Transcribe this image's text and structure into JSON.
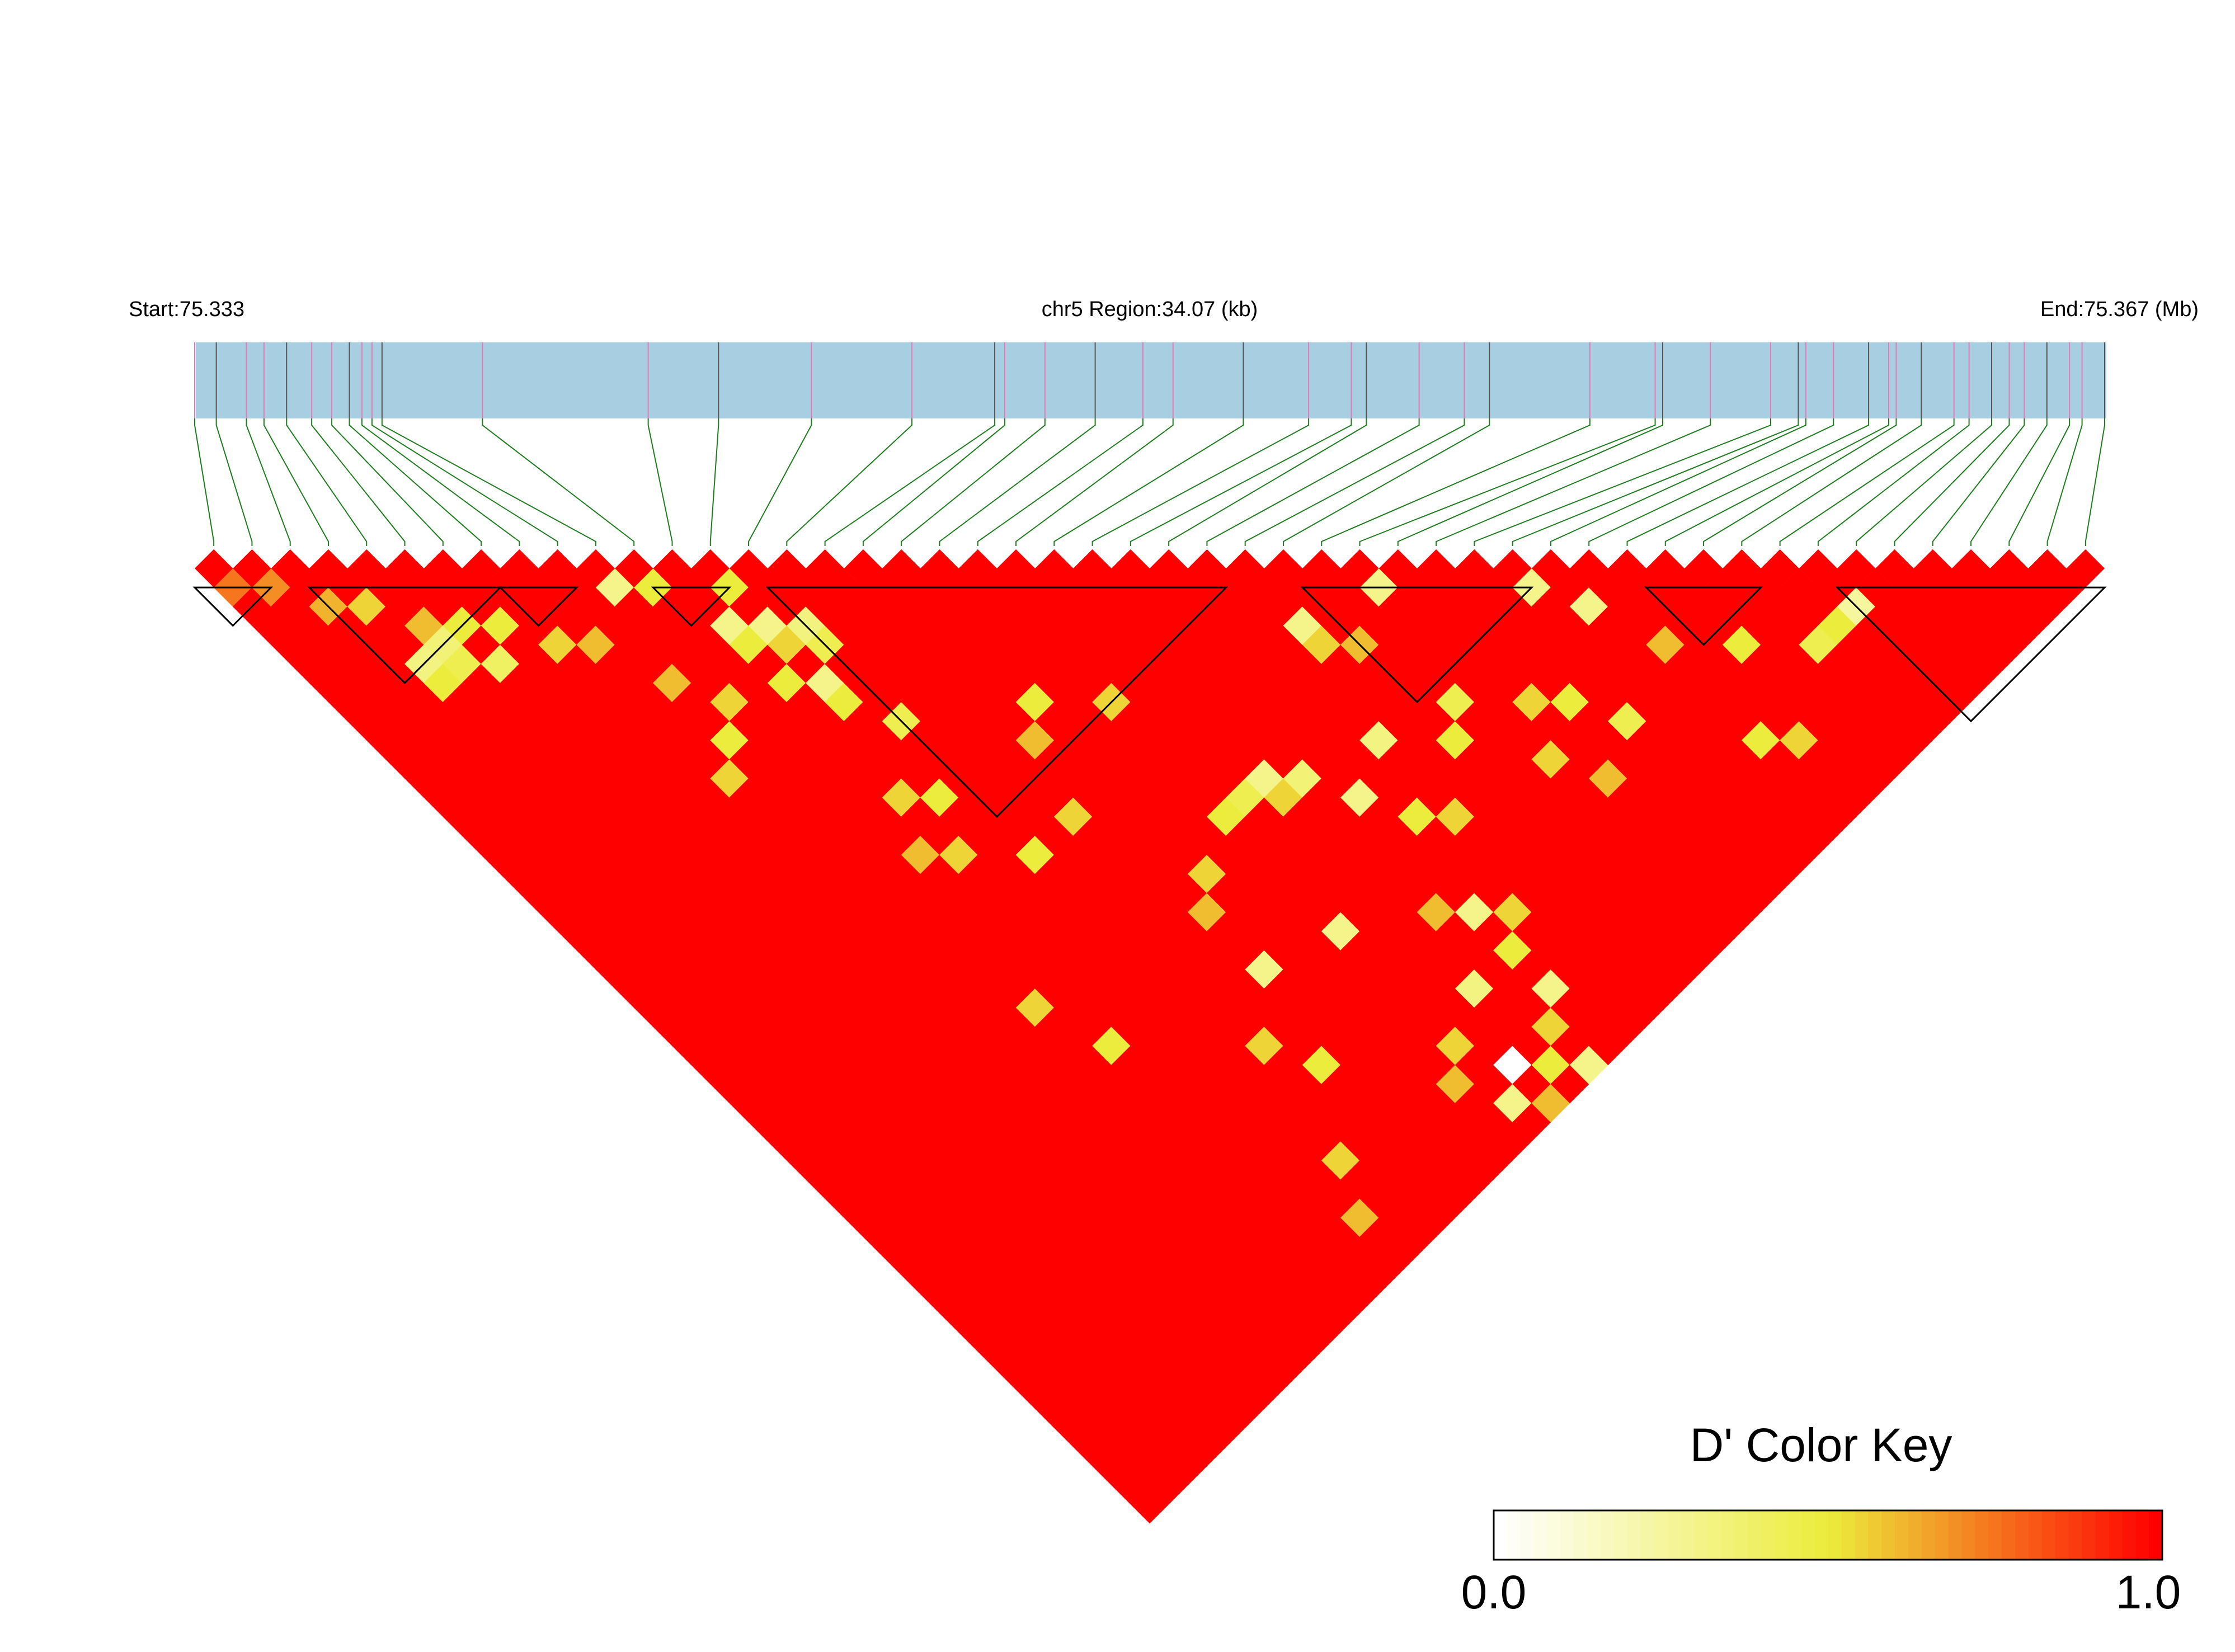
{
  "header": {
    "start_label": "Start:75.333",
    "region_label": "chr5 Region:34.07 (kb)",
    "end_label": "End:75.367 (Mb)"
  },
  "color_key": {
    "title": "D' Color Key",
    "min_label": "0.0",
    "max_label": "1.0"
  },
  "colors": {
    "bar": "#a8cfe1",
    "snp_line_pink": "#e678b4",
    "snp_line_dark": "#555555",
    "connector": "#1e7d1e",
    "low": "#ffffff",
    "mid": "#ecec3c",
    "high": "#ff0000",
    "block_outline": "#000000"
  },
  "chart_data": {
    "type": "heatmap",
    "title": "",
    "region": {
      "chromosome": "chr5",
      "start_mb": 75.333,
      "end_mb": 75.367,
      "length_kb": 34.07
    },
    "n_snps": 50,
    "snp_positions_kb": [
      0.12,
      0.55,
      1.15,
      1.5,
      1.95,
      2.45,
      2.85,
      3.2,
      3.45,
      3.65,
      3.85,
      5.85,
      9.15,
      10.55,
      12.4,
      14.4,
      16.05,
      16.25,
      17.05,
      18.05,
      19.0,
      19.6,
      21.0,
      22.3,
      23.15,
      23.45,
      24.5,
      25.4,
      25.9,
      27.9,
      29.2,
      29.35,
      30.3,
      31.5,
      32.05,
      32.2,
      32.75,
      33.45,
      33.85,
      34.0,
      34.5,
      35.15,
      35.45,
      35.9,
      36.25,
      36.55,
      37.0,
      37.45,
      37.7,
      38.15
    ],
    "low_ld_pairs": [
      {
        "i": 0,
        "j": 1,
        "d": 0.75
      },
      {
        "i": 1,
        "j": 2,
        "d": 0.7
      },
      {
        "i": 2,
        "j": 4,
        "d": 0.62
      },
      {
        "i": 3,
        "j": 5,
        "d": 0.55
      },
      {
        "i": 4,
        "j": 7,
        "d": 0.6
      },
      {
        "i": 5,
        "j": 8,
        "d": 0.5
      },
      {
        "i": 6,
        "j": 9,
        "d": 0.5
      },
      {
        "i": 4,
        "j": 9,
        "d": 0.45
      },
      {
        "i": 5,
        "j": 10,
        "d": 0.4
      },
      {
        "i": 3,
        "j": 9,
        "d": 0.5
      },
      {
        "i": 7,
        "j": 11,
        "d": 0.55
      },
      {
        "i": 8,
        "j": 12,
        "d": 0.6
      },
      {
        "i": 11,
        "j": 12,
        "d": 0.5
      },
      {
        "i": 13,
        "j": 14,
        "d": 0.5
      },
      {
        "i": 12,
        "j": 16,
        "d": 0.5
      },
      {
        "i": 13,
        "j": 17,
        "d": 0.55
      },
      {
        "i": 14,
        "j": 18,
        "d": 0.45
      },
      {
        "i": 12,
        "j": 18,
        "d": 0.5
      },
      {
        "i": 9,
        "j": 15,
        "d": 0.6
      },
      {
        "i": 10,
        "j": 17,
        "d": 0.55
      },
      {
        "i": 9,
        "j": 18,
        "d": 0.5
      },
      {
        "i": 8,
        "j": 19,
        "d": 0.55
      },
      {
        "i": 13,
        "j": 20,
        "d": 0.5
      },
      {
        "i": 14,
        "j": 22,
        "d": 0.45
      },
      {
        "i": 12,
        "j": 24,
        "d": 0.55
      },
      {
        "i": 13,
        "j": 25,
        "d": 0.5
      },
      {
        "i": 11,
        "j": 26,
        "d": 0.6
      },
      {
        "i": 12,
        "j": 27,
        "d": 0.55
      },
      {
        "i": 14,
        "j": 29,
        "d": 0.5
      },
      {
        "i": 16,
        "j": 29,
        "d": 0.55
      },
      {
        "i": 17,
        "j": 26,
        "d": 0.6
      },
      {
        "i": 18,
        "j": 25,
        "d": 0.5
      },
      {
        "i": 20,
        "j": 27,
        "d": 0.55
      },
      {
        "i": 20,
        "j": 33,
        "d": 0.5
      },
      {
        "i": 21,
        "j": 33,
        "d": 0.45
      },
      {
        "i": 22,
        "j": 34,
        "d": 0.55
      },
      {
        "i": 28,
        "j": 37,
        "d": 0.5
      },
      {
        "i": 29,
        "j": 36,
        "d": 0.45
      },
      {
        "i": 27,
        "j": 31,
        "d": 0.55
      },
      {
        "i": 28,
        "j": 32,
        "d": 0.6
      },
      {
        "i": 25,
        "j": 38,
        "d": 0.5
      },
      {
        "i": 26,
        "j": 39,
        "d": 0.55
      },
      {
        "i": 23,
        "j": 41,
        "d": 0.6
      },
      {
        "i": 31,
        "j": 38,
        "d": 0.55
      },
      {
        "i": 32,
        "j": 39,
        "d": 0.5
      },
      {
        "i": 33,
        "j": 41,
        "d": 0.45
      },
      {
        "i": 36,
        "j": 45,
        "d": 0.5
      },
      {
        "i": 37,
        "j": 46,
        "d": 0.55
      },
      {
        "i": 36,
        "j": 40,
        "d": 0.6
      },
      {
        "i": 38,
        "j": 42,
        "d": 0.5
      },
      {
        "i": 40,
        "j": 44,
        "d": 0.45
      },
      {
        "i": 41,
        "j": 44,
        "d": 0.5
      },
      {
        "i": 30,
        "j": 40,
        "d": 0.55
      },
      {
        "i": 31,
        "j": 42,
        "d": 0.6
      },
      {
        "i": 23,
        "j": 47,
        "d": 0.55
      },
      {
        "i": 22,
        "j": 48,
        "d": 0.5
      },
      {
        "i": 19,
        "j": 46,
        "d": 0.6
      },
      {
        "i": 20,
        "j": 45,
        "d": 0.55
      },
      {
        "i": 24,
        "j": 44,
        "d": 0.5
      },
      {
        "i": 25,
        "j": 43,
        "d": 0.55
      },
      {
        "i": 21,
        "j": 49,
        "d": 0.6
      },
      {
        "i": 18,
        "j": 34,
        "d": 0.55
      },
      {
        "i": 17,
        "j": 35,
        "d": 0.6
      },
      {
        "i": 10,
        "j": 33,
        "d": 0.55
      },
      {
        "i": 11,
        "j": 36,
        "d": 0.5
      },
      {
        "i": 15,
        "j": 40,
        "d": 0.55
      },
      {
        "i": 16,
        "j": 42,
        "d": 0.5
      },
      {
        "i": 14,
        "j": 45,
        "d": 0.55
      },
      {
        "i": 13,
        "j": 47,
        "d": 0.6
      }
    ],
    "very_low_ld_pairs": [
      {
        "i": 10,
        "j": 11,
        "d": 0.3
      },
      {
        "i": 3,
        "j": 8,
        "d": 0.32
      },
      {
        "i": 4,
        "j": 8,
        "d": 0.35
      },
      {
        "i": 12,
        "j": 15,
        "d": 0.3
      },
      {
        "i": 13,
        "j": 16,
        "d": 0.3
      },
      {
        "i": 14,
        "j": 17,
        "d": 0.33
      },
      {
        "i": 13,
        "j": 19,
        "d": 0.3
      },
      {
        "i": 30,
        "j": 31,
        "d": 0.3
      },
      {
        "i": 34,
        "j": 35,
        "d": 0.3
      },
      {
        "i": 35,
        "j": 37,
        "d": 0.3
      },
      {
        "i": 27,
        "j": 30,
        "d": 0.3
      },
      {
        "i": 22,
        "j": 33,
        "d": 0.3
      },
      {
        "i": 26,
        "j": 35,
        "d": 0.32
      },
      {
        "i": 24,
        "j": 36,
        "d": 0.3
      },
      {
        "i": 42,
        "j": 44,
        "d": 0.25
      },
      {
        "i": 17,
        "j": 38,
        "d": 0.3
      },
      {
        "i": 20,
        "j": 39,
        "d": 0.3
      },
      {
        "i": 22,
        "j": 44,
        "d": 0.32
      },
      {
        "i": 24,
        "j": 42,
        "d": 0.3
      },
      {
        "i": 23,
        "j": 34,
        "d": 0.35
      },
      {
        "i": 24,
        "j": 46,
        "d": 0.3
      },
      {
        "i": 21,
        "j": 47,
        "d": 0.0
      },
      {
        "i": 20,
        "j": 48,
        "d": 0.3
      },
      {
        "i": 23,
        "j": 49,
        "d": 0.3
      }
    ],
    "default_d_prime": 1.0,
    "ld_blocks": [
      [
        0,
        1
      ],
      [
        3,
        7
      ],
      [
        8,
        9
      ],
      [
        12,
        13
      ],
      [
        15,
        26
      ],
      [
        29,
        34
      ],
      [
        38,
        40
      ],
      [
        43,
        49
      ]
    ],
    "color_scale": {
      "min": 0.0,
      "max": 1.0,
      "low": "#ffffff",
      "mid": "#ecec3c",
      "high": "#ff0000"
    }
  }
}
